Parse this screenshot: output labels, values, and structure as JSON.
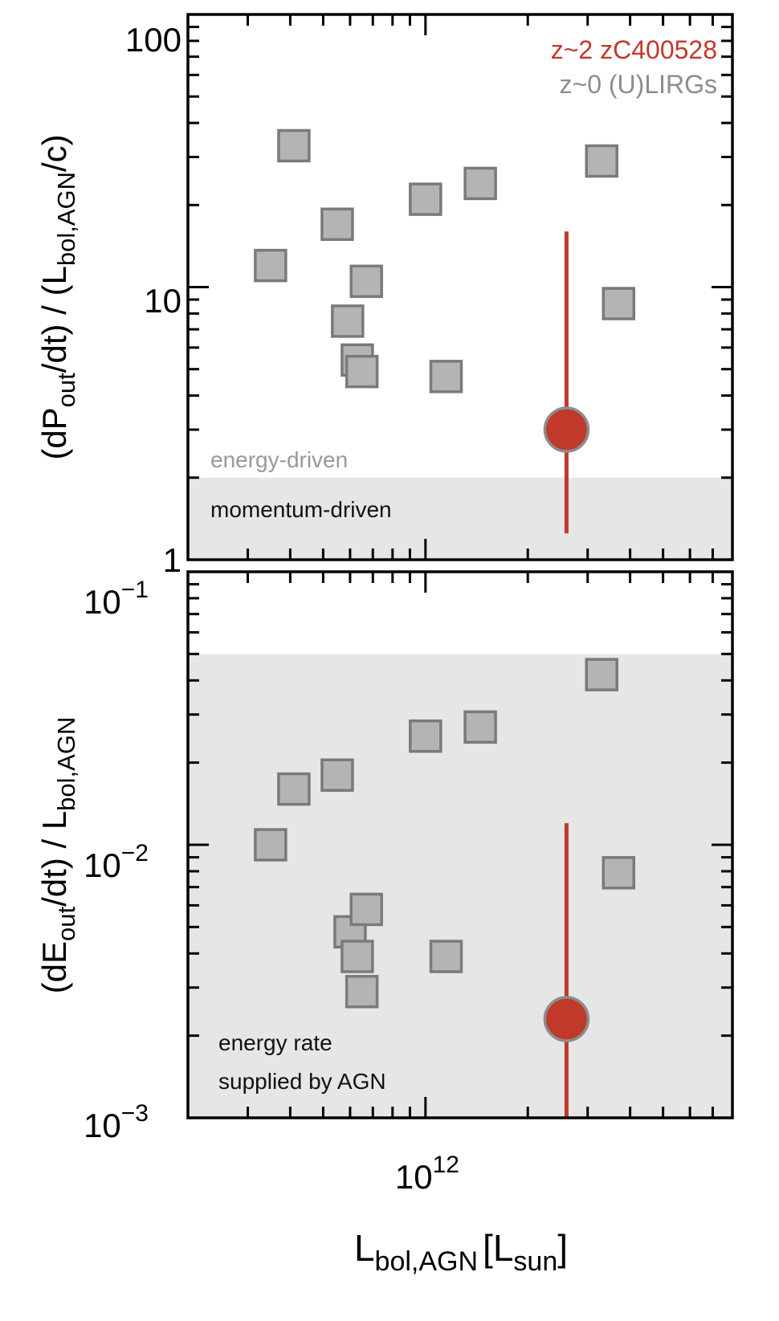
{
  "x_axis": {
    "label_main": "L",
    "label_sub": "bol,AGN",
    "label_bracket_open": "[L",
    "label_bracket_sub": "sun",
    "label_bracket_close": "]",
    "tick_base": "10",
    "tick_exp": "12",
    "xlim": [
      200000000000.0,
      8000000000000.0
    ]
  },
  "legend": {
    "entries": [
      {
        "label": "z~2 zC400528",
        "color": "#c0392b"
      },
      {
        "label": "z~0 (U)LIRGs",
        "color": "#8c8c8c"
      }
    ]
  },
  "colors": {
    "uliRG_fill": "#b4b4b4",
    "uliRG_edge": "#7a7a7a",
    "zc_fill": "#c0392b",
    "zc_edge": "#8c8c8c",
    "shade": "#e6e6e6",
    "axis": "#000000"
  },
  "chart_data": [
    {
      "type": "scatter",
      "panel": "top",
      "ylabel_parts": [
        "(dP",
        "out",
        "/dt) / (L",
        "bol,AGN",
        "/c)"
      ],
      "xscale": "log",
      "yscale": "log",
      "ylim": [
        1,
        100
      ],
      "yticks": [
        {
          "value": 1,
          "base": "1",
          "exp": ""
        },
        {
          "value": 10,
          "base": "10",
          "exp": ""
        },
        {
          "value": 100,
          "base": "100",
          "exp": ""
        }
      ],
      "shaded_region": {
        "y_from": 1,
        "y_to": 2,
        "label": "momentum-driven"
      },
      "annotations": [
        {
          "text": "energy-driven",
          "color": "#999999"
        }
      ],
      "series": [
        {
          "name": "z~0 (U)LIRGs",
          "marker": "square",
          "points": [
            {
              "x": 350000000000.0,
              "y": 12
            },
            {
              "x": 410000000000.0,
              "y": 33
            },
            {
              "x": 550000000000.0,
              "y": 17
            },
            {
              "x": 590000000000.0,
              "y": 7.5
            },
            {
              "x": 630000000000.0,
              "y": 5.4
            },
            {
              "x": 650000000000.0,
              "y": 4.9
            },
            {
              "x": 670000000000.0,
              "y": 10.5
            },
            {
              "x": 1000000000000.0,
              "y": 21
            },
            {
              "x": 1150000000000.0,
              "y": 4.7
            },
            {
              "x": 1450000000000.0,
              "y": 24
            },
            {
              "x": 3300000000000.0,
              "y": 29
            },
            {
              "x": 3700000000000.0,
              "y": 8.7
            }
          ]
        },
        {
          "name": "z~2 zC400528",
          "marker": "circle",
          "points": [
            {
              "x": 2600000000000.0,
              "y": 3.0,
              "y_err_low": 1.25,
              "y_err_high": 16
            }
          ]
        }
      ]
    },
    {
      "type": "scatter",
      "panel": "bottom",
      "ylabel_parts": [
        "(dE",
        "out",
        "/dt) / L",
        "bol,AGN",
        ""
      ],
      "xscale": "log",
      "yscale": "log",
      "ylim": [
        0.001,
        0.1
      ],
      "yticks": [
        {
          "value": 0.001,
          "base": "10",
          "exp": "−3"
        },
        {
          "value": 0.01,
          "base": "10",
          "exp": "−2"
        },
        {
          "value": 0.1,
          "base": "10",
          "exp": "−1"
        }
      ],
      "shaded_region": {
        "y_from": 0.001,
        "y_to": 0.05,
        "label_line1": "energy rate",
        "label_line2": "supplied by AGN"
      },
      "series": [
        {
          "name": "z~0 (U)LIRGs",
          "marker": "square",
          "points": [
            {
              "x": 350000000000.0,
              "y": 0.01
            },
            {
              "x": 410000000000.0,
              "y": 0.016
            },
            {
              "x": 550000000000.0,
              "y": 0.018
            },
            {
              "x": 600000000000.0,
              "y": 0.0048
            },
            {
              "x": 630000000000.0,
              "y": 0.0039
            },
            {
              "x": 650000000000.0,
              "y": 0.0029
            },
            {
              "x": 670000000000.0,
              "y": 0.0058
            },
            {
              "x": 1000000000000.0,
              "y": 0.025
            },
            {
              "x": 1150000000000.0,
              "y": 0.0039
            },
            {
              "x": 1450000000000.0,
              "y": 0.027
            },
            {
              "x": 3300000000000.0,
              "y": 0.042
            },
            {
              "x": 3700000000000.0,
              "y": 0.0079
            }
          ]
        },
        {
          "name": "z~2 zC400528",
          "marker": "circle",
          "points": [
            {
              "x": 2600000000000.0,
              "y": 0.0023,
              "y_err_low": 0.001,
              "y_err_high": 0.012
            }
          ]
        }
      ]
    }
  ]
}
